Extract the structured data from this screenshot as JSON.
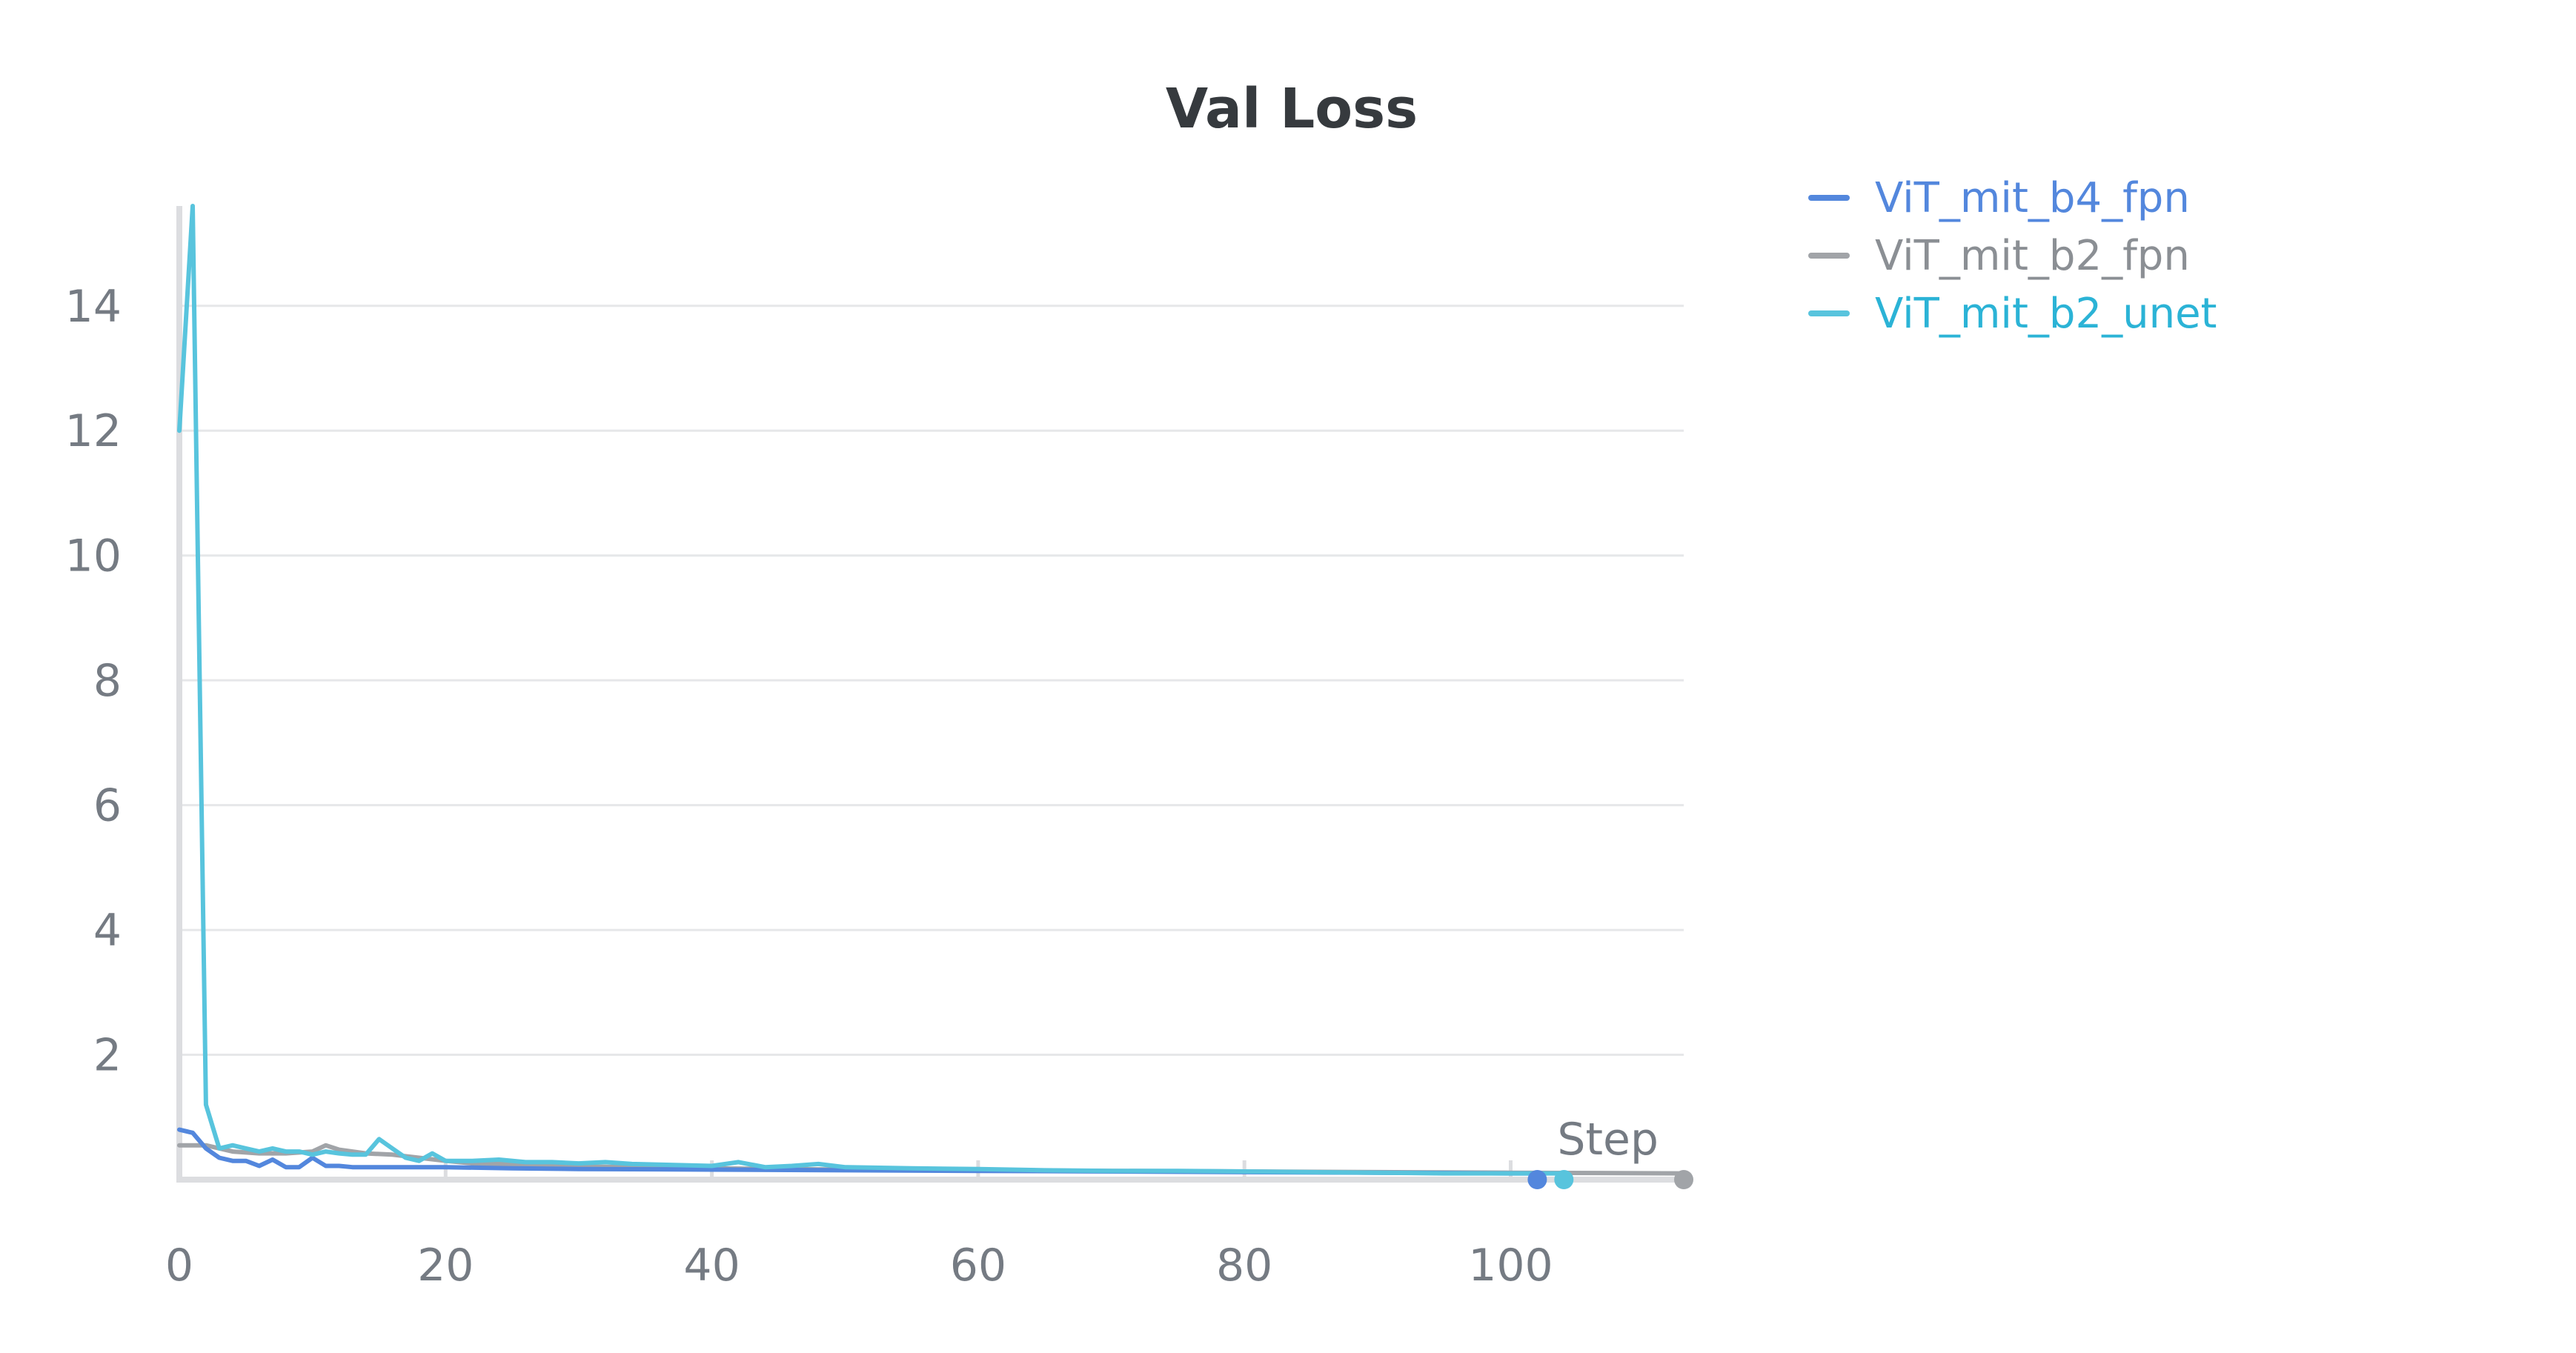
{
  "chart_data": {
    "type": "line",
    "title": "Val Loss",
    "xlabel": "Step",
    "ylabel": "",
    "xlim": [
      0,
      113
    ],
    "ylim": [
      0,
      15.6
    ],
    "xticks": [
      0,
      20,
      40,
      60,
      80,
      100
    ],
    "yticks": [
      2,
      4,
      6,
      8,
      10,
      12,
      14
    ],
    "grid": true,
    "legend_position": "top-right",
    "series": [
      {
        "name": "ViT_mit_b4_fpn",
        "color": "#5387dd",
        "x": [
          0,
          1,
          2,
          3,
          4,
          5,
          6,
          7,
          8,
          9,
          10,
          11,
          12,
          13,
          14,
          15,
          16,
          17,
          18,
          19,
          20,
          25,
          30,
          40,
          50,
          60,
          70,
          80,
          90,
          100,
          102
        ],
        "y": [
          0.8,
          0.75,
          0.5,
          0.35,
          0.3,
          0.3,
          0.22,
          0.32,
          0.2,
          0.2,
          0.35,
          0.22,
          0.22,
          0.2,
          0.2,
          0.2,
          0.2,
          0.2,
          0.2,
          0.2,
          0.2,
          0.18,
          0.17,
          0.16,
          0.15,
          0.14,
          0.13,
          0.12,
          0.11,
          0.1,
          0.1
        ]
      },
      {
        "name": "ViT_mit_b2_fpn",
        "color": "#a1a4a8",
        "x": [
          0,
          2,
          4,
          6,
          8,
          10,
          11,
          12,
          14,
          16,
          18,
          20,
          22,
          24,
          26,
          28,
          30,
          40,
          50,
          60,
          70,
          80,
          90,
          100,
          113
        ],
        "y": [
          0.55,
          0.55,
          0.45,
          0.42,
          0.42,
          0.45,
          0.55,
          0.48,
          0.42,
          0.4,
          0.35,
          0.3,
          0.26,
          0.25,
          0.24,
          0.22,
          0.21,
          0.18,
          0.16,
          0.15,
          0.14,
          0.13,
          0.12,
          0.11,
          0.1
        ]
      },
      {
        "name": "ViT_mit_b2_unet",
        "color": "#58c4dd",
        "x": [
          0,
          1,
          2,
          3,
          4,
          5,
          6,
          7,
          8,
          9,
          10,
          11,
          12,
          13,
          14,
          15,
          16,
          17,
          18,
          19,
          20,
          22,
          24,
          26,
          28,
          30,
          32,
          34,
          36,
          40,
          42,
          44,
          46,
          48,
          50,
          55,
          60,
          65,
          70,
          75,
          80,
          85,
          90,
          95,
          100,
          104
        ],
        "y": [
          12,
          15.6,
          1.2,
          0.5,
          0.55,
          0.5,
          0.45,
          0.5,
          0.45,
          0.45,
          0.4,
          0.45,
          0.42,
          0.4,
          0.4,
          0.65,
          0.5,
          0.35,
          0.3,
          0.42,
          0.3,
          0.3,
          0.32,
          0.28,
          0.28,
          0.26,
          0.28,
          0.25,
          0.24,
          0.22,
          0.28,
          0.2,
          0.22,
          0.25,
          0.2,
          0.18,
          0.17,
          0.15,
          0.14,
          0.14,
          0.13,
          0.12,
          0.11,
          0.1,
          0.1,
          0.1
        ]
      }
    ]
  }
}
